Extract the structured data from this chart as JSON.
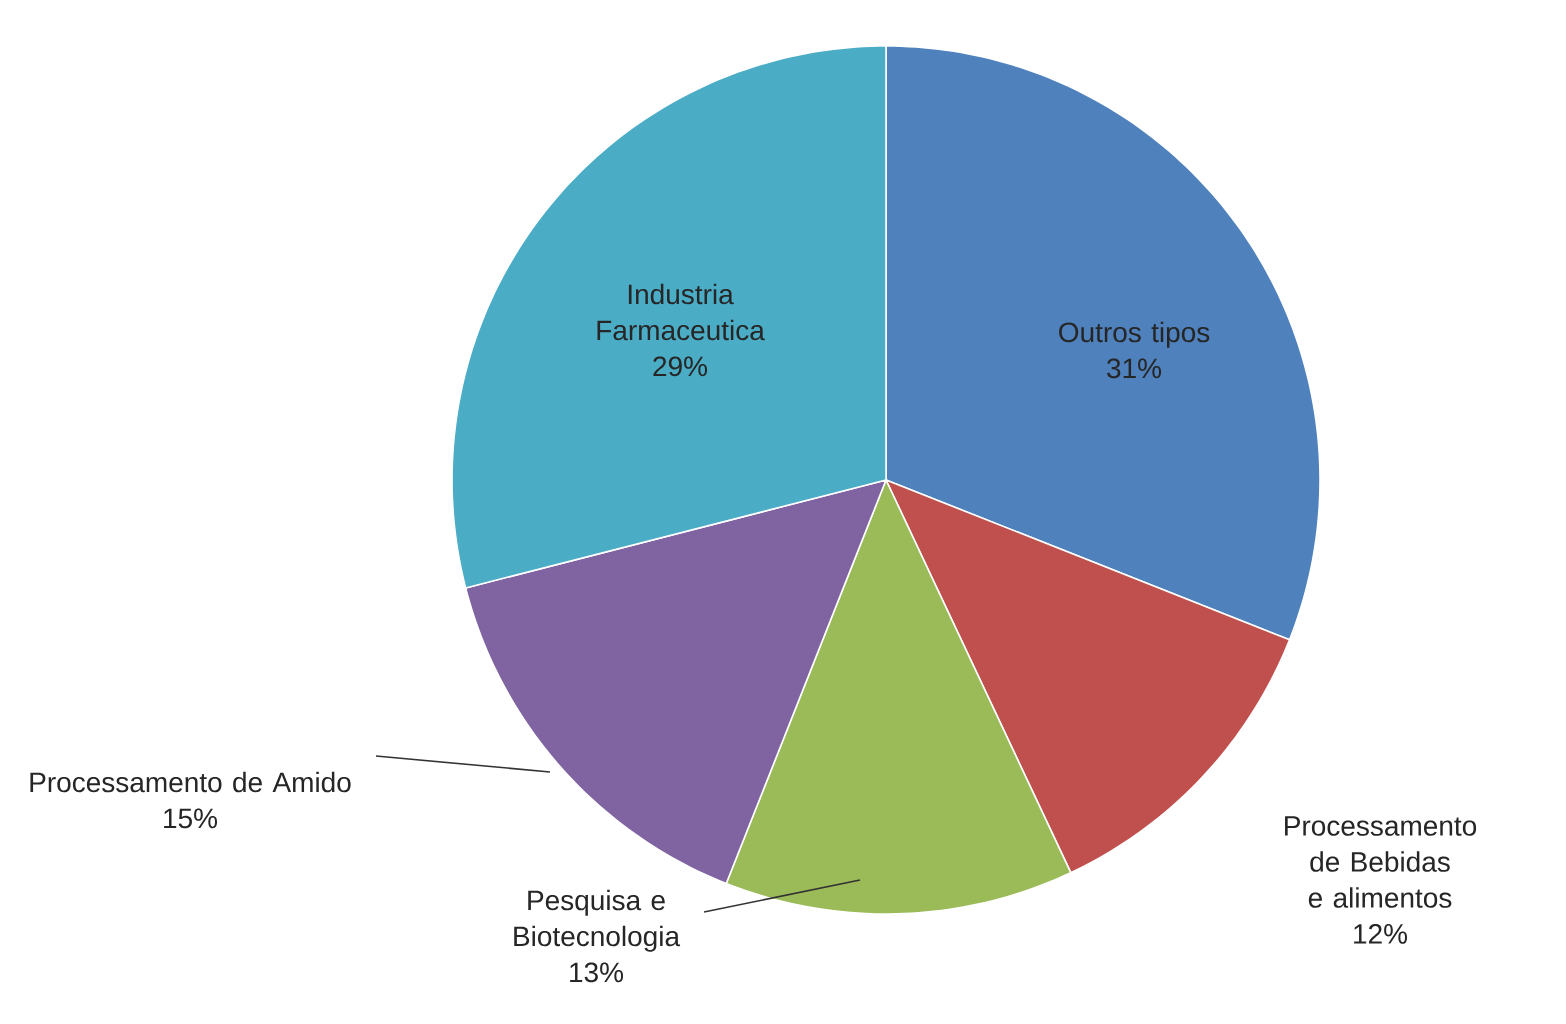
{
  "chart_data": {
    "type": "pie",
    "categories": [
      "Outros tipos",
      "Processamento de Bebidas e alimentos",
      "Pesquisa e Biotecnologia",
      "Processamento de Amido",
      "Industria Farmaceutica"
    ],
    "values": [
      31,
      12,
      13,
      15,
      29
    ],
    "colors": [
      "#4f81bd",
      "#c0504d",
      "#9bbb59",
      "#8064a2",
      "#4bacc6"
    ],
    "value_labels": [
      "31%",
      "12%",
      "13%",
      "15%",
      "29%"
    ]
  }
}
